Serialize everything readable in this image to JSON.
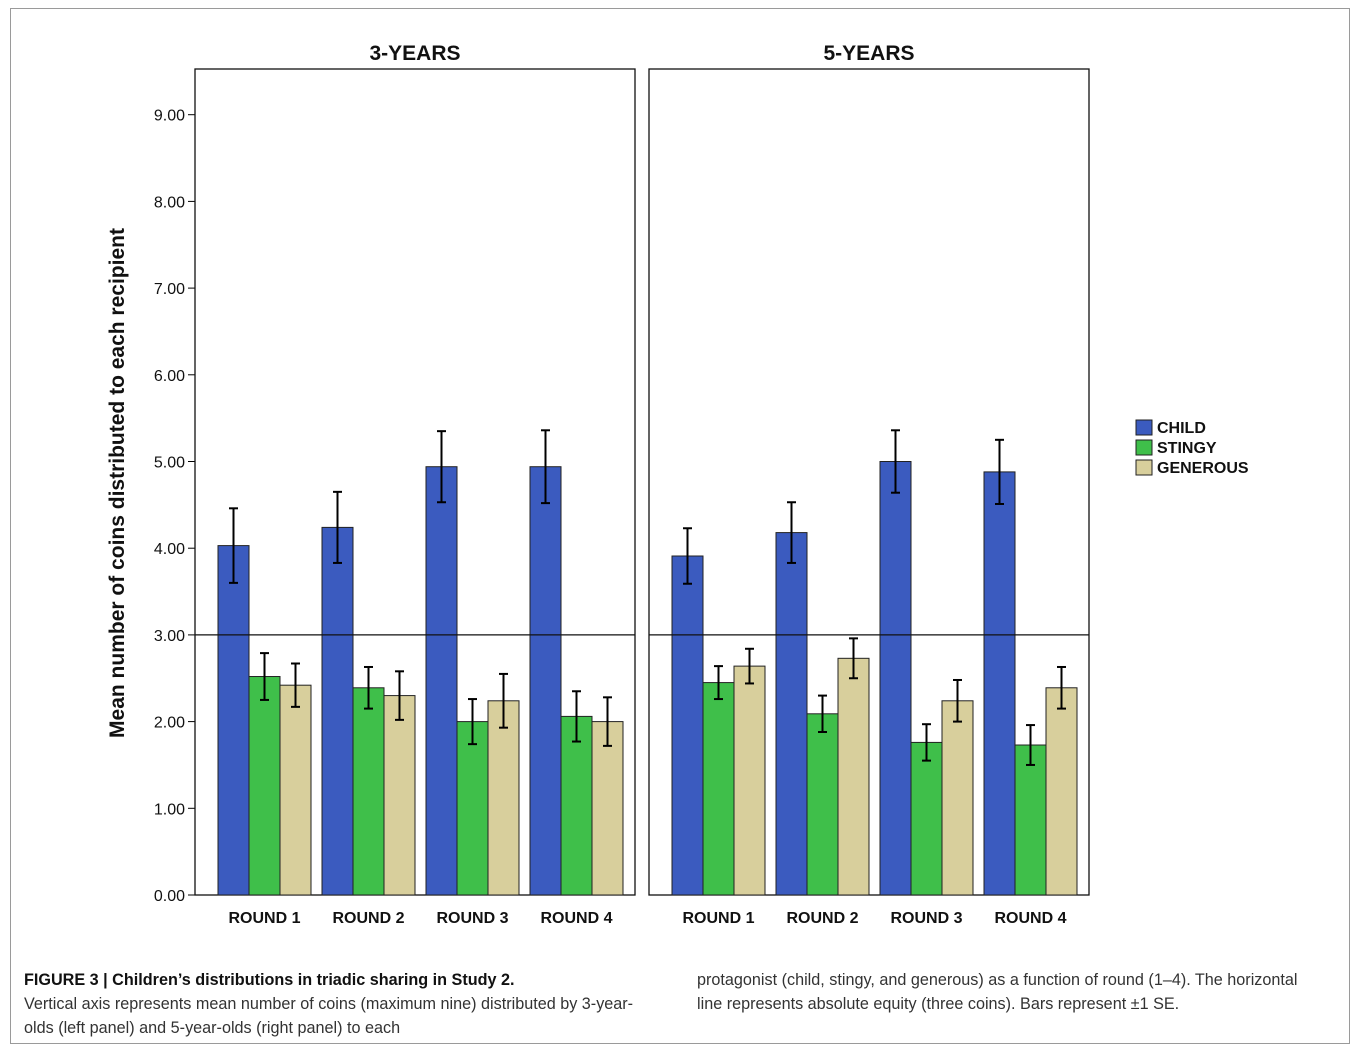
{
  "chart_data": {
    "type": "bar",
    "ylabel": "Mean number of coins distributed to each recipient",
    "ylim": [
      0,
      9.5
    ],
    "yticks": [
      "0.00",
      "1.00",
      "2.00",
      "3.00",
      "4.00",
      "5.00",
      "6.00",
      "7.00",
      "8.00",
      "9.00"
    ],
    "reference_line": 3.0,
    "legend_position": "right",
    "series_names": [
      "CHILD",
      "STINGY",
      "GENEROUS"
    ],
    "colors": [
      "#3b5bbf",
      "#3fbf4a",
      "#d8cf9c"
    ],
    "panels": [
      {
        "title": "3-YEARS",
        "categories": [
          "ROUND 1",
          "ROUND 2",
          "ROUND 3",
          "ROUND 4"
        ],
        "series": [
          {
            "name": "CHILD",
            "values": [
              4.03,
              4.24,
              4.94,
              4.94
            ],
            "errors": [
              0.43,
              0.41,
              0.41,
              0.42
            ]
          },
          {
            "name": "STINGY",
            "values": [
              2.52,
              2.39,
              2.0,
              2.06
            ],
            "errors": [
              0.27,
              0.24,
              0.26,
              0.29
            ]
          },
          {
            "name": "GENEROUS",
            "values": [
              2.42,
              2.3,
              2.24,
              2.0
            ],
            "errors": [
              0.25,
              0.28,
              0.31,
              0.28
            ]
          }
        ]
      },
      {
        "title": "5-YEARS",
        "categories": [
          "ROUND 1",
          "ROUND 2",
          "ROUND 3",
          "ROUND 4"
        ],
        "series": [
          {
            "name": "CHILD",
            "values": [
              3.91,
              4.18,
              5.0,
              4.88
            ],
            "errors": [
              0.32,
              0.35,
              0.36,
              0.37
            ]
          },
          {
            "name": "STINGY",
            "values": [
              2.45,
              2.09,
              1.76,
              1.73
            ],
            "errors": [
              0.19,
              0.21,
              0.21,
              0.23
            ]
          },
          {
            "name": "GENEROUS",
            "values": [
              2.64,
              2.73,
              2.24,
              2.39
            ],
            "errors": [
              0.2,
              0.23,
              0.24,
              0.24
            ]
          }
        ]
      }
    ]
  },
  "caption": {
    "title": "FIGURE 3 | Children’s distributions in triadic sharing in Study 2.",
    "left_text": "Vertical axis represents mean number of coins (maximum nine) distributed by 3-year-olds (left panel) and 5-year-olds (right panel) to each",
    "right_text": "protagonist (child, stingy, and generous) as a function of round (1–4). The horizontal line represents absolute equity (three coins). Bars represent ±1 SE."
  }
}
